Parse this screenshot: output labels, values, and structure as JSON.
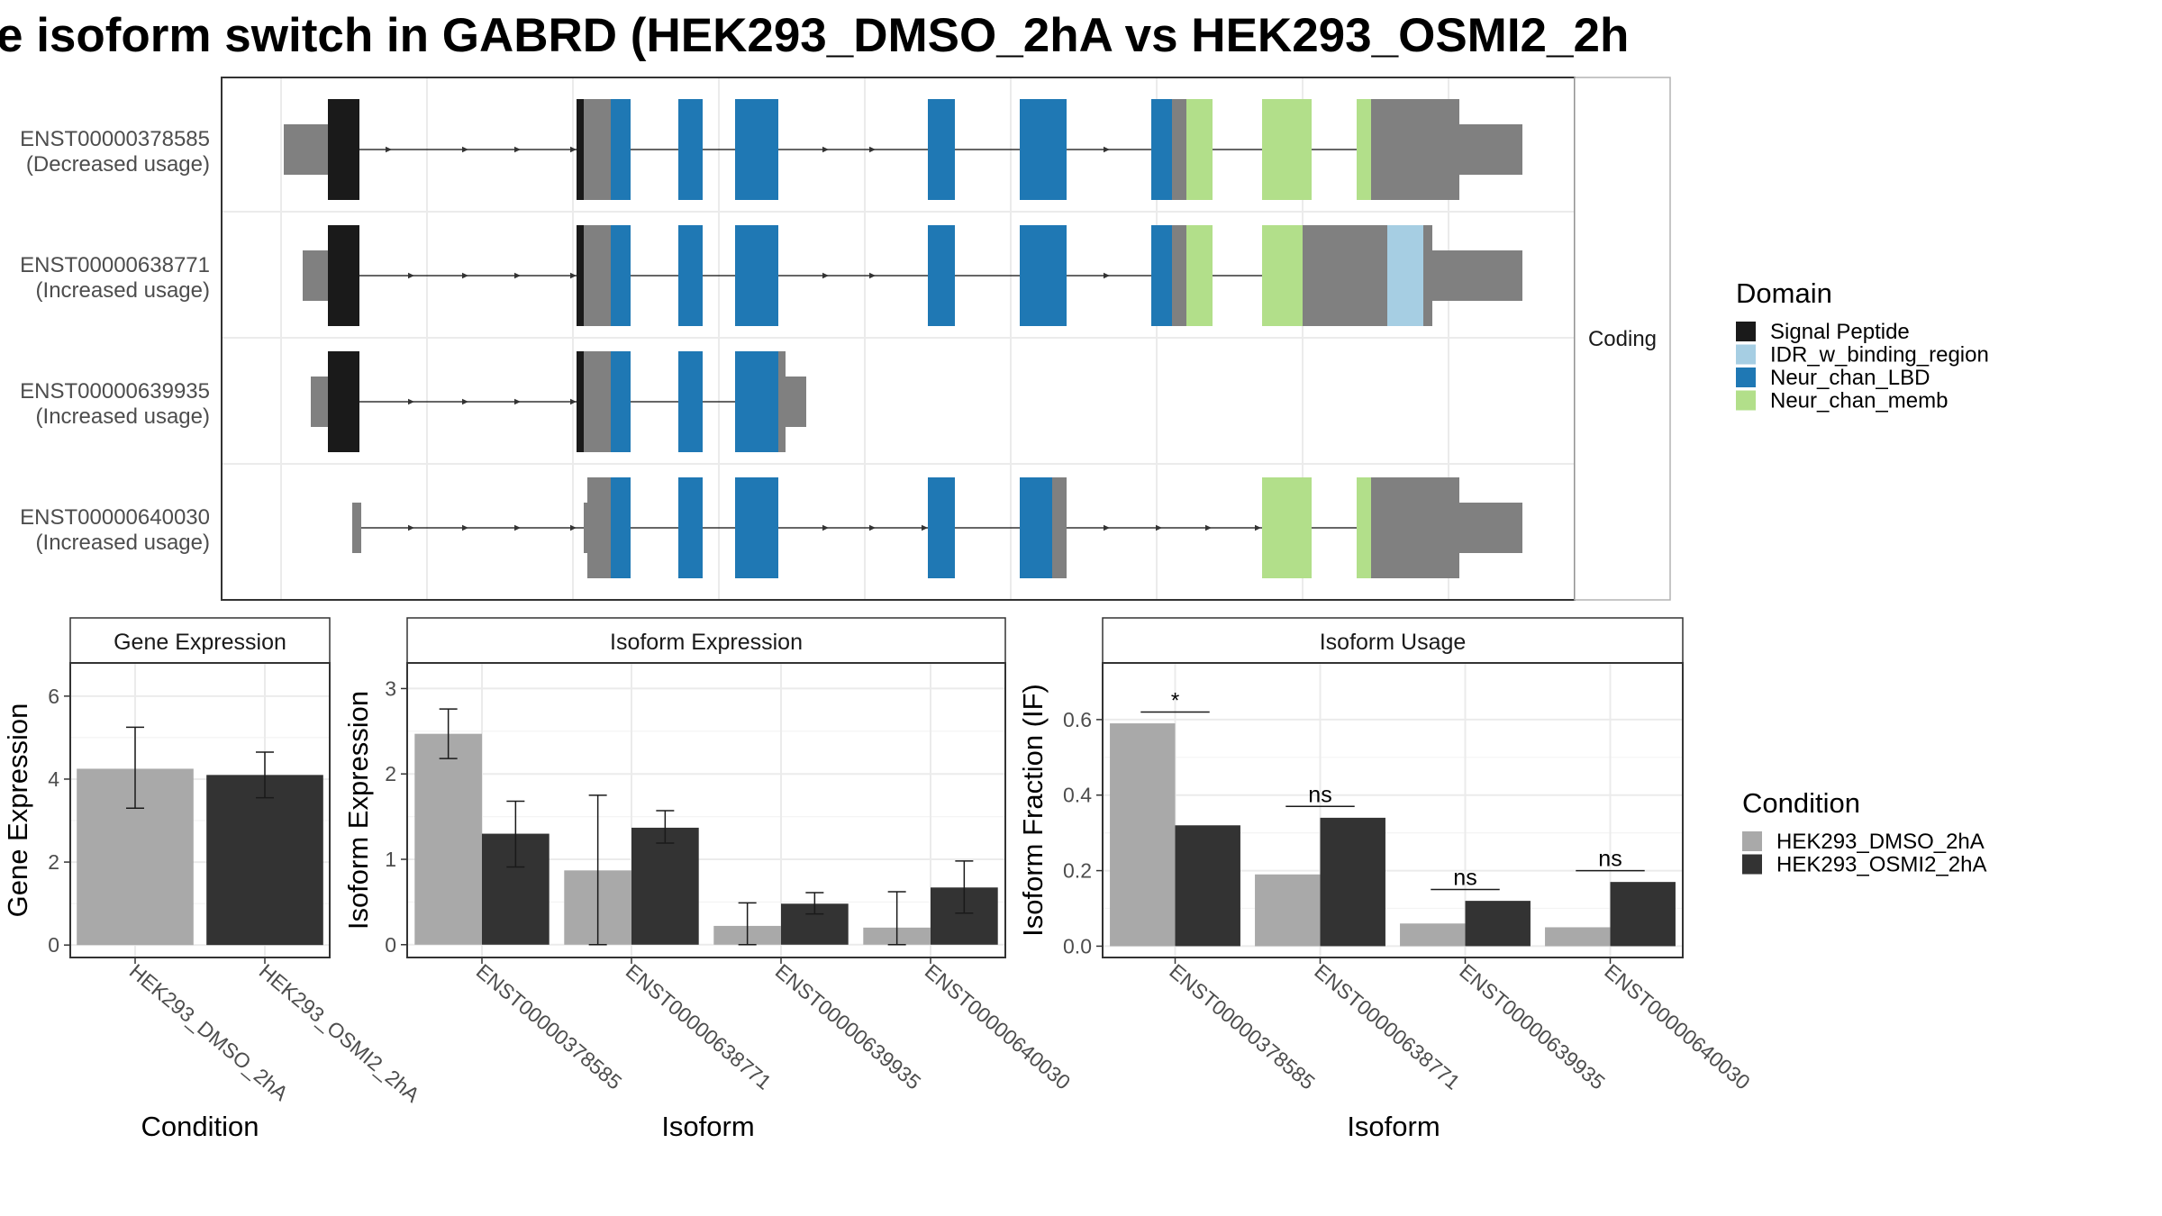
{
  "title": "e isoform switch in GABRD (HEK293_DMSO_2hA vs HEK293_OSMI2_2h",
  "structure": {
    "facet_label": "Coding",
    "isoforms": [
      {
        "id": "ENST00000378585",
        "usage": "(Decreased usage)"
      },
      {
        "id": "ENST00000638771",
        "usage": "(Increased usage)"
      },
      {
        "id": "ENST00000639935",
        "usage": "(Increased usage)"
      },
      {
        "id": "ENST00000640030",
        "usage": "(Increased usage)"
      }
    ]
  },
  "legend_domain": {
    "title": "Domain",
    "items": [
      {
        "label": "Signal Peptide",
        "color": "#1a1a1a"
      },
      {
        "label": "IDR_w_binding_region",
        "color": "#a6cee3"
      },
      {
        "label": "Neur_chan_LBD",
        "color": "#1f78b4"
      },
      {
        "label": "Neur_chan_memb",
        "color": "#b2df8a"
      }
    ]
  },
  "legend_condition": {
    "title": "Condition",
    "items": [
      {
        "label": "HEK293_DMSO_2hA",
        "color": "#a9a9a9"
      },
      {
        "label": "HEK293_OSMI2_2hA",
        "color": "#333333"
      }
    ]
  },
  "colors": {
    "utr": "#808080",
    "panel_border": "#333333",
    "grid": "#ebebeb",
    "strip_fill": "#ffffff"
  },
  "chart_data": [
    {
      "type": "bar",
      "title": "Gene Expression",
      "xlabel": "Condition",
      "ylabel": "Gene Expression",
      "ylim": [
        -0.3,
        6.8
      ],
      "yticks": [
        0,
        2,
        4,
        6
      ],
      "categories": [
        "HEK293_DMSO_2hA",
        "HEK293_OSMI2_2hA"
      ],
      "values": [
        4.25,
        4.1
      ],
      "error_low": [
        3.3,
        3.55
      ],
      "error_high": [
        5.25,
        4.65
      ]
    },
    {
      "type": "bar",
      "title": "Isoform Expression",
      "xlabel": "Isoform",
      "ylabel": "Isoform Expression",
      "ylim": [
        -0.15,
        3.3
      ],
      "yticks": [
        0,
        1,
        2,
        3
      ],
      "categories": [
        "ENST00000378585",
        "ENST00000638771",
        "ENST00000639935",
        "ENST00000640030"
      ],
      "series": [
        {
          "name": "HEK293_DMSO_2hA",
          "values": [
            2.47,
            0.87,
            0.22,
            0.2
          ],
          "error_low": [
            2.18,
            0.0,
            0.0,
            0.0
          ],
          "error_high": [
            2.76,
            1.75,
            0.49,
            0.62
          ]
        },
        {
          "name": "HEK293_OSMI2_2hA",
          "values": [
            1.3,
            1.37,
            0.48,
            0.67
          ],
          "error_low": [
            0.91,
            1.19,
            0.36,
            0.37
          ],
          "error_high": [
            1.68,
            1.57,
            0.61,
            0.98
          ]
        }
      ]
    },
    {
      "type": "bar",
      "title": "Isoform Usage",
      "xlabel": "Isoform",
      "ylabel": "Isoform Fraction (IF)",
      "ylim": [
        -0.03,
        0.75
      ],
      "yticks": [
        0.0,
        0.2,
        0.4,
        0.6
      ],
      "ytick_labels": [
        "0.0",
        "0.2",
        "0.4",
        "0.6"
      ],
      "categories": [
        "ENST00000378585",
        "ENST00000638771",
        "ENST00000639935",
        "ENST00000640030"
      ],
      "series": [
        {
          "name": "HEK293_DMSO_2hA",
          "values": [
            0.59,
            0.19,
            0.06,
            0.05
          ]
        },
        {
          "name": "HEK293_OSMI2_2hA",
          "values": [
            0.32,
            0.34,
            0.12,
            0.17
          ]
        }
      ],
      "significance": [
        {
          "label": "*",
          "y": 0.62
        },
        {
          "label": "ns",
          "y": 0.37
        },
        {
          "label": "ns",
          "y": 0.15
        },
        {
          "label": "ns",
          "y": 0.2
        }
      ]
    }
  ]
}
